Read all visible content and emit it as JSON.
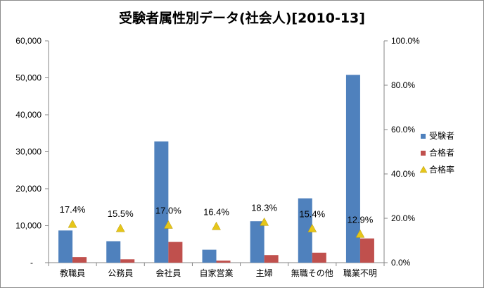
{
  "chart_data": {
    "type": "bar",
    "title": "受験者属性別データ(社会人)[2010-13]",
    "categories": [
      "教職員",
      "公務員",
      "会社員",
      "自家営業",
      "主婦",
      "無職その他",
      "職業不明"
    ],
    "series": [
      {
        "name": "受験者",
        "type": "bar",
        "axis": "left",
        "color": "#4f81bd",
        "values": [
          8700,
          5800,
          32800,
          3500,
          11200,
          17400,
          50800
        ]
      },
      {
        "name": "合格者",
        "type": "bar",
        "axis": "left",
        "color": "#c0504d",
        "values": [
          1500,
          900,
          5600,
          550,
          2050,
          2700,
          6550
        ]
      },
      {
        "name": "合格率",
        "type": "marker",
        "axis": "right",
        "color": "#e6c619",
        "marker": "triangle",
        "values": [
          17.4,
          15.5,
          17.0,
          16.4,
          18.3,
          15.4,
          12.9
        ],
        "labels": [
          "17.4%",
          "15.5%",
          "17.0%",
          "16.4%",
          "18.3%",
          "15.4%",
          "12.9%"
        ]
      }
    ],
    "y_left": {
      "ylim": [
        0,
        60000
      ],
      "ticks": [
        "-",
        "10,000",
        "20,000",
        "30,000",
        "40,000",
        "50,000",
        "60,000"
      ]
    },
    "y_right": {
      "ylim": [
        0,
        100
      ],
      "ticks": [
        "0.0%",
        "20.0%",
        "40.0%",
        "60.0%",
        "80.0%",
        "100.0%"
      ]
    },
    "grid": false,
    "legend": "right"
  }
}
